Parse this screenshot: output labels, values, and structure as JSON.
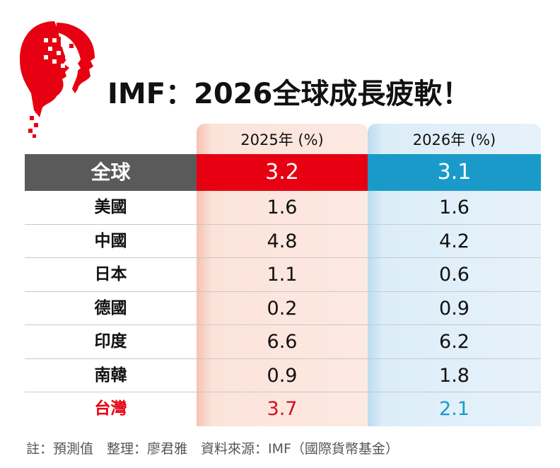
{
  "title": "IMF：2026全球成長疲軟！",
  "colors": {
    "red": "#e60012",
    "blue": "#1a9ac9",
    "gray": "#5a5a5a"
  },
  "logo_icon": "red-head-pixel-logo",
  "chart_data": {
    "type": "table",
    "title": "IMF：2026全球成長疲軟！",
    "columns": [
      "2025年 (%)",
      "2026年 (%)"
    ],
    "global": {
      "label": "全球",
      "values": [
        "3.2",
        "3.1"
      ]
    },
    "rows": [
      {
        "label": "美國",
        "values": [
          "1.6",
          "1.6"
        ]
      },
      {
        "label": "中國",
        "values": [
          "4.8",
          "4.2"
        ]
      },
      {
        "label": "日本",
        "values": [
          "1.1",
          "0.6"
        ]
      },
      {
        "label": "德國",
        "values": [
          "0.2",
          "0.9"
        ]
      },
      {
        "label": "印度",
        "values": [
          "6.6",
          "6.2"
        ]
      },
      {
        "label": "南韓",
        "values": [
          "0.9",
          "1.8"
        ]
      },
      {
        "label": "台灣",
        "values": [
          "3.7",
          "2.1"
        ],
        "highlight": true
      }
    ]
  },
  "footnote": "註：預測值　整理：廖君雅　資料來源：IMF（國際貨幣基金）"
}
